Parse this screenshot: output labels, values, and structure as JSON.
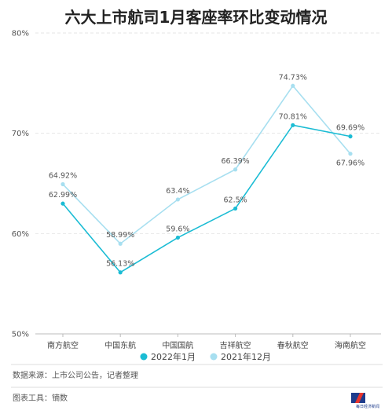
{
  "chart_data": {
    "type": "line",
    "title": "六大上市航司1月客座率环比变动情况",
    "categories": [
      "南方航空",
      "中国东航",
      "中国国航",
      "吉祥航空",
      "春秋航空",
      "海南航空"
    ],
    "series": [
      {
        "name": "2022年1月",
        "color": "#1bbcd4",
        "values": [
          62.99,
          56.13,
          59.6,
          62.5,
          70.81,
          69.69
        ],
        "labels": [
          "62.99%",
          "56.13%",
          "59.6%",
          "62.5%",
          "70.81%",
          "69.69%"
        ]
      },
      {
        "name": "2021年12月",
        "color": "#a7dff0",
        "values": [
          64.92,
          58.99,
          63.4,
          66.39,
          74.73,
          67.96
        ],
        "labels": [
          "64.92%",
          "58.99%",
          "63.4%",
          "66.39%",
          "74.73%",
          "67.96%"
        ]
      }
    ],
    "yticks": [
      {
        "value": 80,
        "label": "80%"
      },
      {
        "value": 70,
        "label": "70%"
      },
      {
        "value": 60,
        "label": "60%"
      },
      {
        "value": 50,
        "label": "50%"
      }
    ],
    "ylim": [
      50,
      80
    ],
    "grid": true,
    "legend_position": "bottom-center"
  },
  "footer": {
    "source": "数据来源：上市公司公告，记者整理",
    "tool": "图表工具：镝数",
    "logo_text": "每日经济新闻"
  }
}
